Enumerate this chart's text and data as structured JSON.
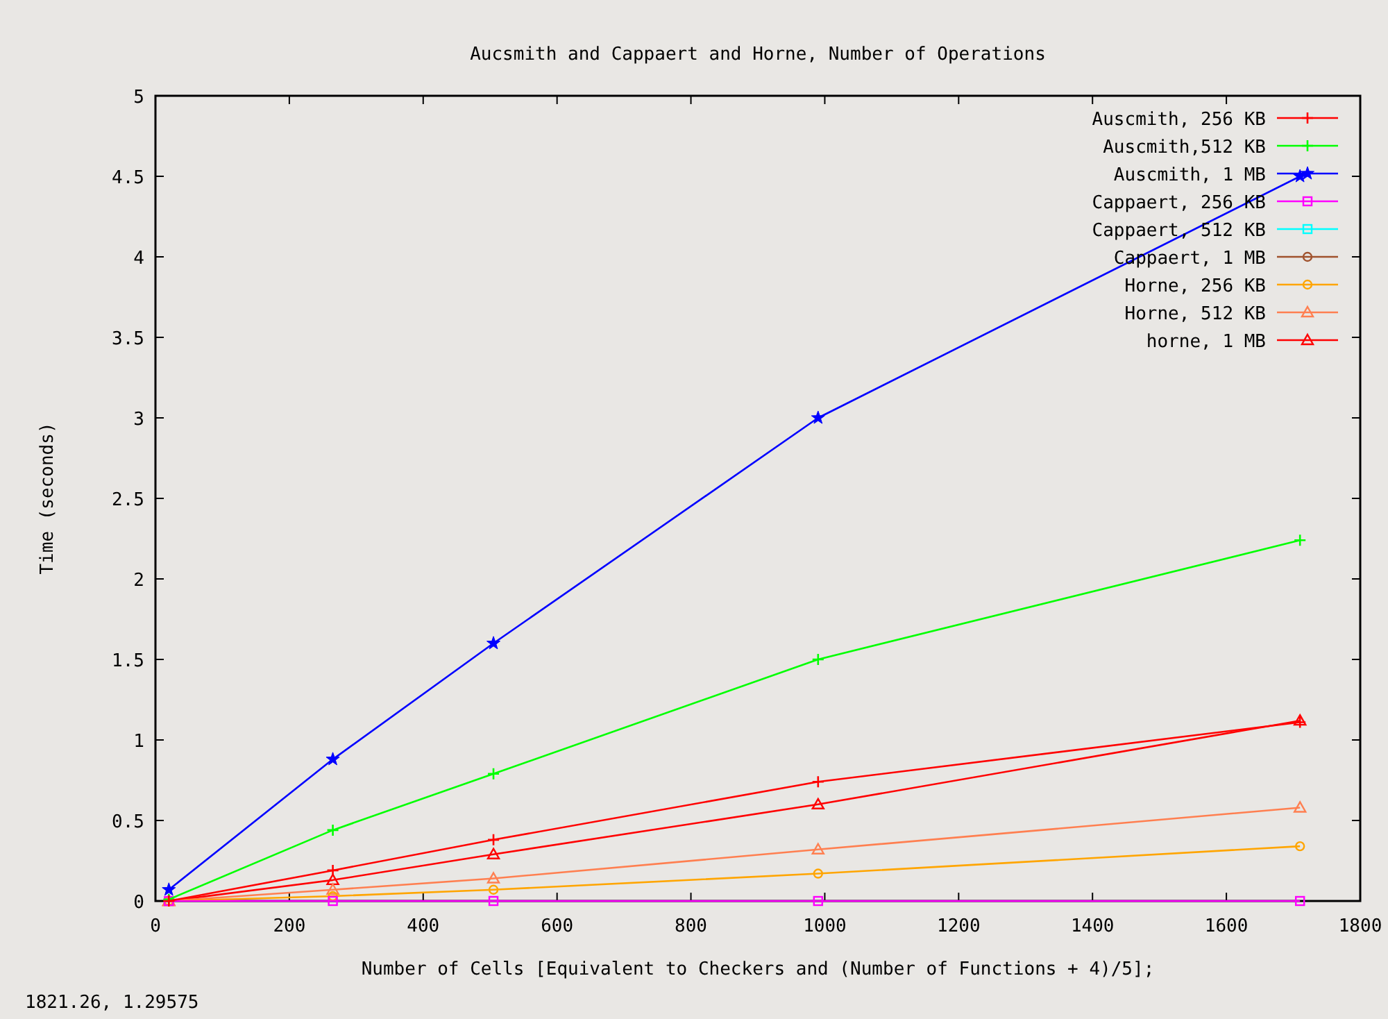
{
  "chart_data": {
    "type": "line",
    "title": "Aucsmith and Cappaert and Horne, Number of Operations",
    "xlabel": "Number of Cells [Equivalent to Checkers and (Number of Functions + 4)/5];",
    "ylabel": "Time (seconds)",
    "x": [
      20,
      265,
      505,
      990,
      1710
    ],
    "series": [
      {
        "name": "Auscmith, 256 KB",
        "color": "#ff0000",
        "marker": "cross",
        "values": [
          0,
          0.19,
          0.38,
          0.74,
          1.11
        ]
      },
      {
        "name": "Auscmith,512 KB",
        "color": "#00ff00",
        "marker": "cross",
        "values": [
          0.01,
          0.44,
          0.79,
          1.5,
          2.24
        ]
      },
      {
        "name": "Auscmith, 1 MB",
        "color": "#0000ff",
        "marker": "star",
        "values": [
          0.07,
          0.88,
          1.6,
          3.0,
          4.5
        ]
      },
      {
        "name": "Cappaert, 256 KB",
        "color": "#ff00ff",
        "marker": "square",
        "values": [
          0,
          0,
          0,
          0,
          0
        ]
      },
      {
        "name": "Cappaert, 512 KB",
        "color": "#00ffff",
        "marker": "square",
        "values": [
          null,
          null,
          null,
          null,
          null
        ]
      },
      {
        "name": "Cappaert, 1 MB",
        "color": "#a0522d",
        "marker": "circle",
        "values": [
          null,
          null,
          null,
          null,
          null
        ]
      },
      {
        "name": "Horne, 256 KB",
        "color": "#ffa500",
        "marker": "circle",
        "values": [
          0,
          0.03,
          0.07,
          0.17,
          0.34
        ]
      },
      {
        "name": "Horne, 512 KB",
        "color": "#ff7f50",
        "marker": "triangle",
        "values": [
          0,
          0.07,
          0.14,
          0.32,
          0.58
        ]
      },
      {
        "name": "horne, 1 MB",
        "color": "#ff0000",
        "marker": "triangle",
        "values": [
          0,
          0.13,
          0.29,
          0.6,
          1.12
        ]
      }
    ],
    "xlim": [
      0,
      1800
    ],
    "xticks": [
      0,
      200,
      400,
      600,
      800,
      1000,
      1200,
      1400,
      1600,
      1800
    ],
    "ylim": [
      0,
      5
    ],
    "yticks": [
      0,
      0.5,
      1,
      1.5,
      2,
      2.5,
      3,
      3.5,
      4,
      4.5,
      5
    ],
    "grid": false,
    "legend": "top right",
    "annotations": [
      "1821.26,  1.29575"
    ]
  }
}
